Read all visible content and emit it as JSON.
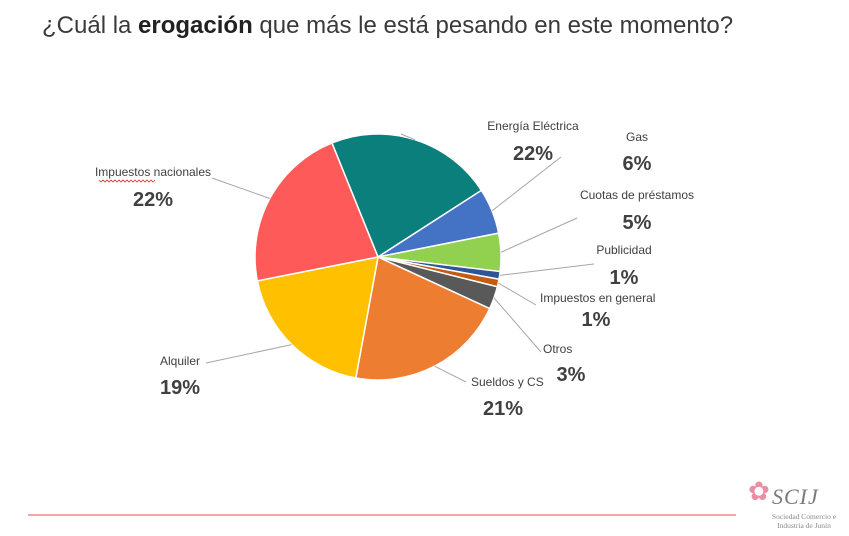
{
  "title": {
    "prefix": "¿Cuál la ",
    "bold": "erogación",
    "suffix": " que más le está pesando en este momento?"
  },
  "chart_data": {
    "type": "pie",
    "title": "¿Cuál la erogación que más le está pesando en este momento?",
    "slices": [
      {
        "label": "Energía Eléctrica",
        "value": 22,
        "display": "22%",
        "color": "#0b7f7c"
      },
      {
        "label": "Gas",
        "value": 6,
        "display": "6%",
        "color": "#4472c4"
      },
      {
        "label": "Cuotas de préstamos",
        "value": 5,
        "display": "5%",
        "color": "#92d050"
      },
      {
        "label": "Publicidad",
        "value": 1,
        "display": "1%",
        "color": "#2f5597"
      },
      {
        "label": "Impuestos en general",
        "value": 1,
        "display": "1%",
        "color": "#c55a11"
      },
      {
        "label": "Otros",
        "value": 3,
        "display": "3%",
        "color": "#595959"
      },
      {
        "label": "Sueldos y CS",
        "value": 21,
        "display": "21%",
        "color": "#ed7d31"
      },
      {
        "label": "Alquiler",
        "value": 19,
        "display": "19%",
        "color": "#ffc000"
      },
      {
        "label": "Impuestos nacionales",
        "value": 22,
        "display": "22%",
        "color": "#ff5a5a"
      }
    ],
    "legend": "none",
    "data_labels": "outside with leader lines"
  },
  "logo": {
    "text": "SCIJ",
    "subtitle": "Sociedad Comercio e Industria de Junín",
    "icon": "flower-icon"
  },
  "colors": {
    "accent_line": "#f2a7a7",
    "leader_line": "#a6a6a6"
  }
}
